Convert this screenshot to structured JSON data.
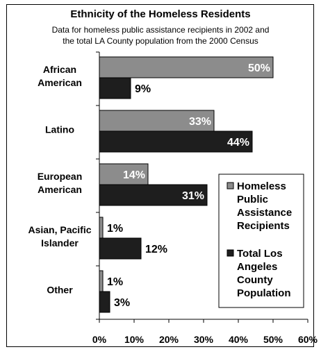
{
  "title": "Ethnicity of the Homeless Residents",
  "subtitle_line1": "Data for homeless public assistance recipients in 2002 and",
  "subtitle_line2": "the total LA County population from the 2000 Census",
  "chart_data": {
    "type": "bar",
    "orientation": "horizontal",
    "categories": [
      [
        "African",
        "American"
      ],
      [
        "Latino"
      ],
      [
        "European",
        "American"
      ],
      [
        "Asian, Pacific",
        "Islander"
      ],
      [
        "Other"
      ]
    ],
    "series": [
      {
        "name": [
          "Homeless",
          "Public",
          "Assistance",
          "Recipients"
        ],
        "values": [
          50,
          33,
          14,
          1,
          1
        ],
        "color": "#8c8c8c"
      },
      {
        "name": [
          "Total Los",
          "Angeles",
          "County",
          "Population"
        ],
        "values": [
          9,
          44,
          31,
          12,
          3
        ],
        "color": "#1e1e1e"
      }
    ],
    "value_labels": [
      [
        "50%",
        "33%",
        "14%",
        "1%",
        "1%"
      ],
      [
        "9%",
        "44%",
        "31%",
        "12%",
        "3%"
      ]
    ],
    "xlim": [
      0,
      60
    ],
    "xticks": [
      0,
      10,
      20,
      30,
      40,
      50,
      60
    ],
    "xtick_labels": [
      "0%",
      "10%",
      "20%",
      "30%",
      "40%",
      "50%",
      "60%"
    ],
    "grid": false,
    "legend_position": "right"
  }
}
